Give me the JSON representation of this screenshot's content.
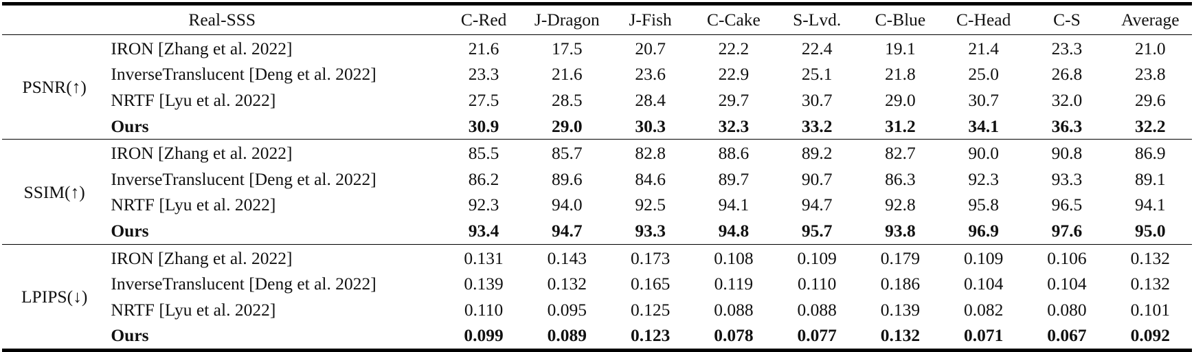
{
  "table": {
    "header": {
      "dataset_label": "Real-SSS",
      "columns": [
        "C-Red",
        "J-Dragon",
        "J-Fish",
        "C-Cake",
        "S-Lvd.",
        "C-Blue",
        "C-Head",
        "C-S",
        "Average"
      ]
    },
    "groups": [
      {
        "metric": "PSNR(↑)",
        "rows": [
          {
            "method": "IRON [Zhang et al. 2022]",
            "values": [
              "21.6",
              "17.5",
              "20.7",
              "22.2",
              "22.4",
              "19.1",
              "21.4",
              "23.3",
              "21.0"
            ]
          },
          {
            "method": "InverseTranslucent [Deng et al. 2022]",
            "values": [
              "23.3",
              "21.6",
              "23.6",
              "22.9",
              "25.1",
              "21.8",
              "25.0",
              "26.8",
              "23.8"
            ]
          },
          {
            "method": "NRTF [Lyu et al. 2022]",
            "values": [
              "27.5",
              "28.5",
              "28.4",
              "29.7",
              "30.7",
              "29.0",
              "30.7",
              "32.0",
              "29.6"
            ]
          },
          {
            "method": "Ours",
            "values": [
              "30.9",
              "29.0",
              "30.3",
              "32.3",
              "33.2",
              "31.2",
              "34.1",
              "36.3",
              "32.2"
            ]
          }
        ]
      },
      {
        "metric": "SSIM(↑)",
        "rows": [
          {
            "method": "IRON [Zhang et al. 2022]",
            "values": [
              "85.5",
              "85.7",
              "82.8",
              "88.6",
              "89.2",
              "82.7",
              "90.0",
              "90.8",
              "86.9"
            ]
          },
          {
            "method": "InverseTranslucent [Deng et al. 2022]",
            "values": [
              "86.2",
              "89.6",
              "84.6",
              "89.7",
              "90.7",
              "86.3",
              "92.3",
              "93.3",
              "89.1"
            ]
          },
          {
            "method": "NRTF [Lyu et al. 2022]",
            "values": [
              "92.3",
              "94.0",
              "92.5",
              "94.1",
              "94.7",
              "92.8",
              "95.8",
              "96.5",
              "94.1"
            ]
          },
          {
            "method": "Ours",
            "values": [
              "93.4",
              "94.7",
              "93.3",
              "94.8",
              "95.7",
              "93.8",
              "96.9",
              "97.6",
              "95.0"
            ]
          }
        ]
      },
      {
        "metric": "LPIPS(↓)",
        "rows": [
          {
            "method": "IRON [Zhang et al. 2022]",
            "values": [
              "0.131",
              "0.143",
              "0.173",
              "0.108",
              "0.109",
              "0.179",
              "0.109",
              "0.106",
              "0.132"
            ]
          },
          {
            "method": "InverseTranslucent [Deng et al. 2022]",
            "values": [
              "0.139",
              "0.132",
              "0.165",
              "0.119",
              "0.110",
              "0.186",
              "0.104",
              "0.104",
              "0.132"
            ]
          },
          {
            "method": "NRTF [Lyu et al. 2022]",
            "values": [
              "0.110",
              "0.095",
              "0.125",
              "0.088",
              "0.088",
              "0.139",
              "0.082",
              "0.080",
              "0.101"
            ]
          },
          {
            "method": "Ours",
            "values": [
              "0.099",
              "0.089",
              "0.123",
              "0.078",
              "0.077",
              "0.132",
              "0.071",
              "0.067",
              "0.092"
            ]
          }
        ]
      }
    ]
  }
}
